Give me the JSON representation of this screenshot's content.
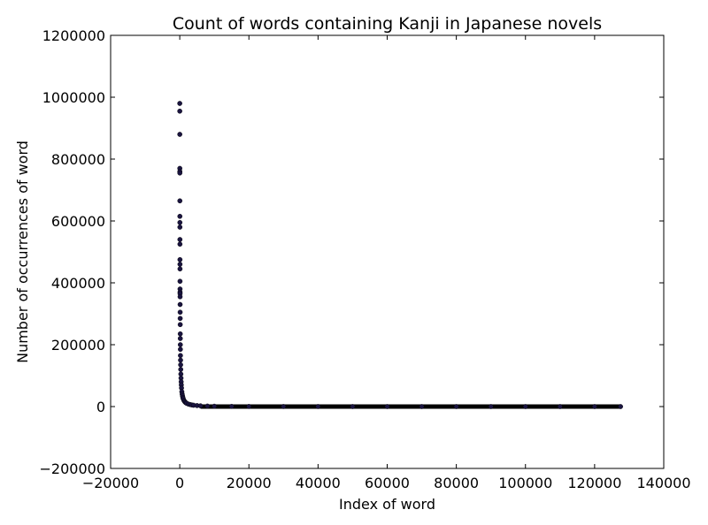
{
  "chart_data": {
    "type": "scatter",
    "title": "Count of words containing Kanji in Japanese novels",
    "xlabel": "Index of word",
    "ylabel": "Number of occurrences of word",
    "xlim": [
      -20000,
      140000
    ],
    "ylim": [
      -200000,
      1200000
    ],
    "xticks": [
      -20000,
      0,
      20000,
      40000,
      60000,
      80000,
      100000,
      120000,
      140000
    ],
    "yticks": [
      -200000,
      0,
      200000,
      400000,
      600000,
      800000,
      1000000,
      1200000
    ],
    "xtick_labels": [
      "−20000",
      "0",
      "20000",
      "40000",
      "60000",
      "80000",
      "100000",
      "120000",
      "140000"
    ],
    "ytick_labels": [
      "−200000",
      "0",
      "200000",
      "400000",
      "600000",
      "800000",
      "1000000",
      "1200000"
    ],
    "grid": false,
    "marker_color": "#1a1440",
    "series": [
      {
        "x": [
          0,
          5,
          10,
          15,
          20,
          25,
          30,
          35,
          40,
          45,
          50,
          55,
          60,
          65,
          70,
          75,
          80,
          85,
          90,
          95,
          100,
          110,
          120,
          130,
          140,
          150,
          165,
          180,
          200,
          225,
          250,
          280,
          320,
          360,
          400,
          450,
          500,
          600,
          700,
          800,
          900,
          1000,
          1200,
          1400,
          1600,
          1800,
          2000,
          2500,
          3000,
          3500,
          4000,
          5000,
          6000,
          8000,
          10000,
          15000,
          20000,
          30000,
          40000,
          50000,
          60000,
          70000,
          80000,
          90000,
          100000,
          110000,
          120000,
          127500
        ],
        "y": [
          980000,
          955000,
          880000,
          770000,
          760000,
          755000,
          665000,
          615000,
          595000,
          580000,
          540000,
          525000,
          475000,
          460000,
          445000,
          405000,
          380000,
          370000,
          365000,
          355000,
          330000,
          305000,
          285000,
          265000,
          235000,
          220000,
          200000,
          185000,
          165000,
          150000,
          135000,
          120000,
          105000,
          92000,
          80000,
          70000,
          60000,
          48000,
          40000,
          34000,
          29000,
          25000,
          20000,
          16500,
          14000,
          12000,
          10500,
          8000,
          6500,
          5200,
          4300,
          3200,
          2400,
          1600,
          1100,
          600,
          350,
          180,
          110,
          70,
          45,
          30,
          20,
          12,
          8,
          5,
          3,
          1
        ]
      }
    ]
  }
}
